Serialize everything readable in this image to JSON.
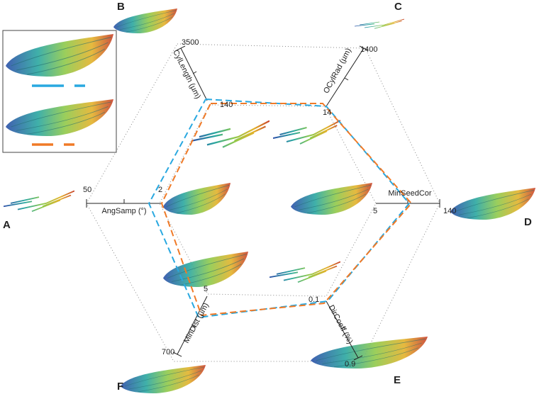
{
  "panels": {
    "a": "A",
    "b": "B",
    "c": "C",
    "d": "D",
    "e": "E",
    "f": "F"
  },
  "axes": [
    {
      "label": "CylLength (µm)",
      "outer": 3500,
      "inner": 140
    },
    {
      "label": "OCylRad (µm)",
      "outer": 1400,
      "inner": 14
    },
    {
      "label": "MinSeedCor",
      "inner": 5,
      "outer": 140
    },
    {
      "label": "DirCoeff (%)",
      "inner": 0.1,
      "outer": 0.9
    },
    {
      "label": "MinDist (µm)",
      "inner": 5,
      "outer": 700
    },
    {
      "label": "AngSamp (°)",
      "outer": 50,
      "inner": 2
    }
  ]
}
